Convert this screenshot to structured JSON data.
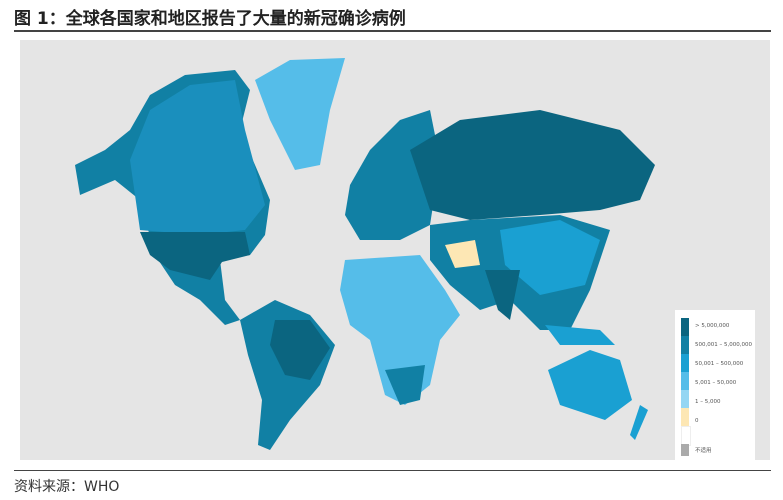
{
  "title": "图 1：全球各国家和地区报告了大量的新冠确诊病例",
  "source": "资料来源：WHO",
  "legend": [
    {
      "label": "> 5,000,000",
      "color": "#0b6580"
    },
    {
      "label": "500,001 – 5,000,000",
      "color": "#1180a4"
    },
    {
      "label": "50,001 – 500,000",
      "color": "#1aa0d2"
    },
    {
      "label": "5,001 – 50,000",
      "color": "#55bde9"
    },
    {
      "label": "1 – 5,000",
      "color": "#95d6f3"
    },
    {
      "label": "0",
      "color": "#fde7b4"
    },
    {
      "label": "",
      "color": "#ffffff"
    },
    {
      "label": "不适用",
      "color": "#aaaaaa"
    }
  ]
}
